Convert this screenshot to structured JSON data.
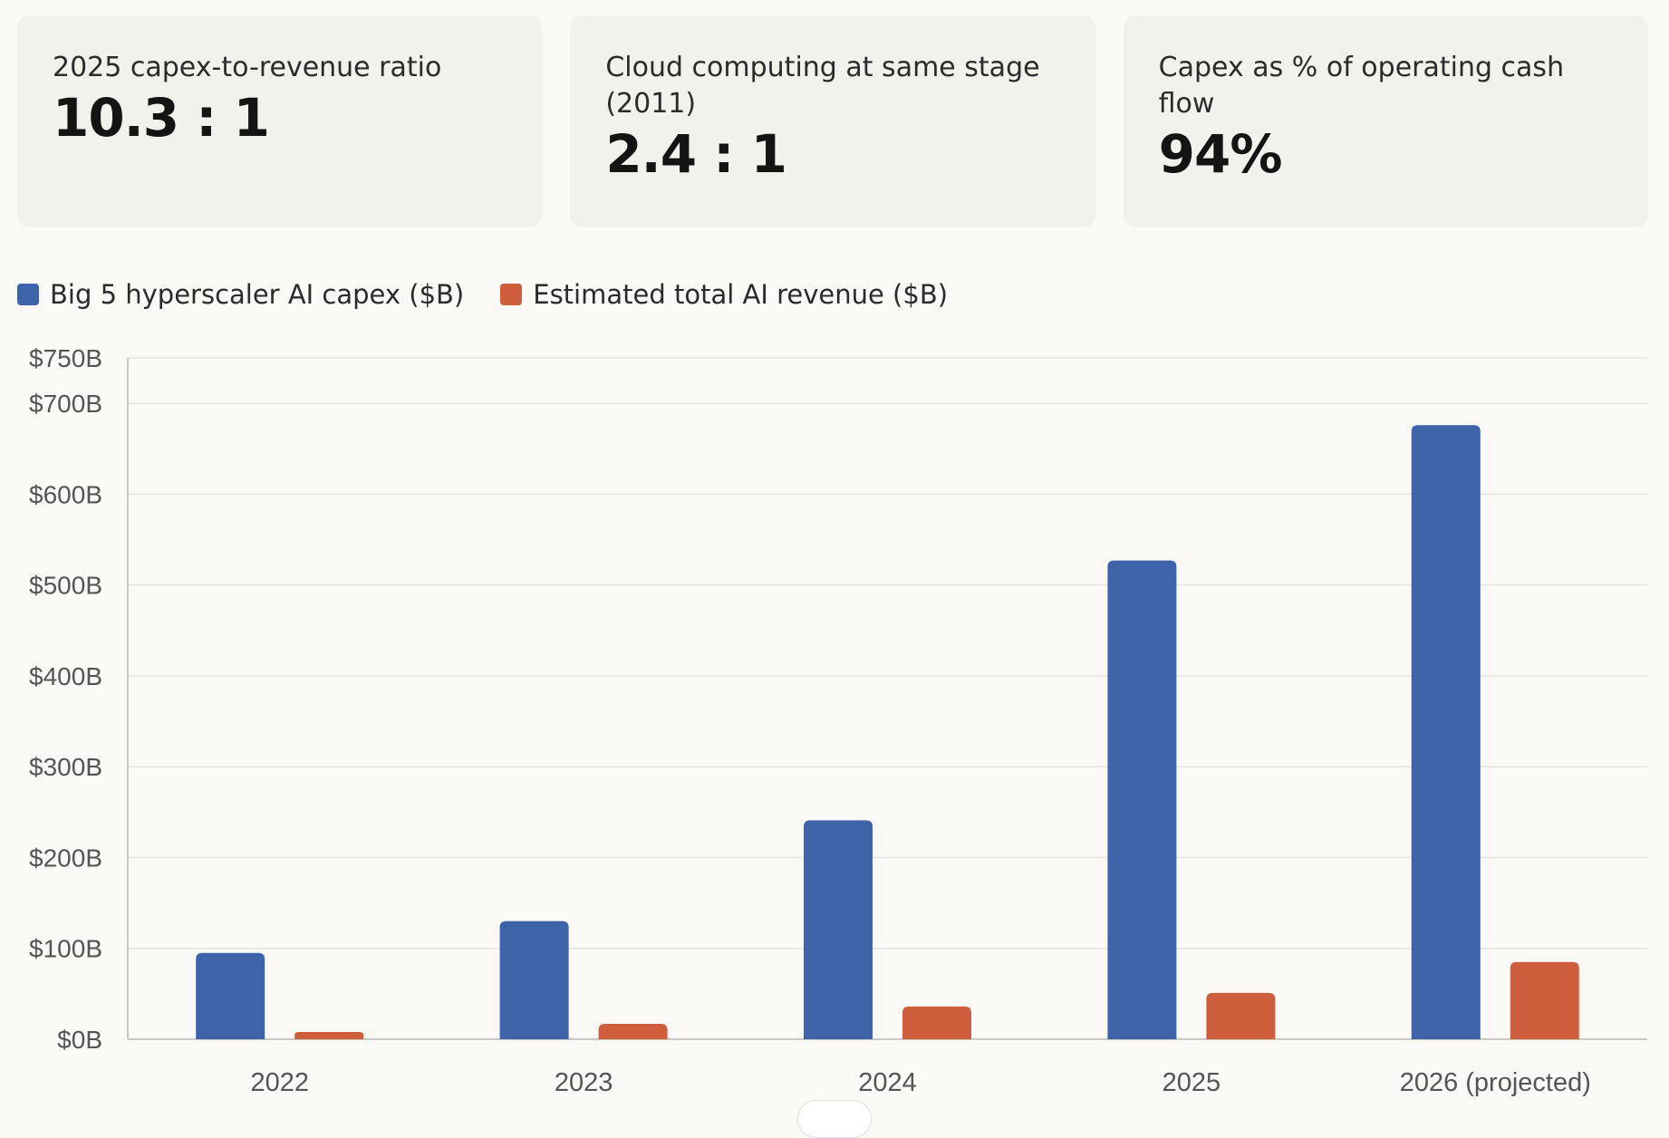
{
  "cards": [
    {
      "label": "2025 capex-to-revenue ratio",
      "value": "10.3 : 1"
    },
    {
      "label": "Cloud computing at same stage (2011)",
      "value": "2.4 : 1"
    },
    {
      "label": "Capex as % of operating cash flow",
      "value": "94%"
    }
  ],
  "colors": {
    "capex": "#3f63a8",
    "revenue": "#cf5f3c",
    "grid": "#e6e4df",
    "axis": "#c9c7c2",
    "background": "#faf9f6",
    "card": "#f3f1ec"
  },
  "chart_data": {
    "type": "bar",
    "categories": [
      "2022",
      "2023",
      "2024",
      "2025",
      "2026 (projected)"
    ],
    "series": [
      {
        "name": "Big 5 hyperscaler AI capex ($B)",
        "values": [
          95,
          130,
          241,
          527,
          676
        ],
        "color": "#3f63a8"
      },
      {
        "name": "Estimated total AI revenue ($B)",
        "values": [
          8,
          17,
          36,
          51,
          85
        ],
        "color": "#cf5f3c"
      }
    ],
    "y_ticks": [
      0,
      100,
      200,
      300,
      400,
      500,
      600,
      700,
      750
    ],
    "y_tick_labels": [
      "$0B",
      "$100B",
      "$200B",
      "$300B",
      "$400B",
      "$500B",
      "$600B",
      "$700B",
      "$750B"
    ],
    "ylim": [
      0,
      750
    ],
    "grid": true,
    "legend": "top-left",
    "title": "",
    "xlabel": "",
    "ylabel": ""
  }
}
